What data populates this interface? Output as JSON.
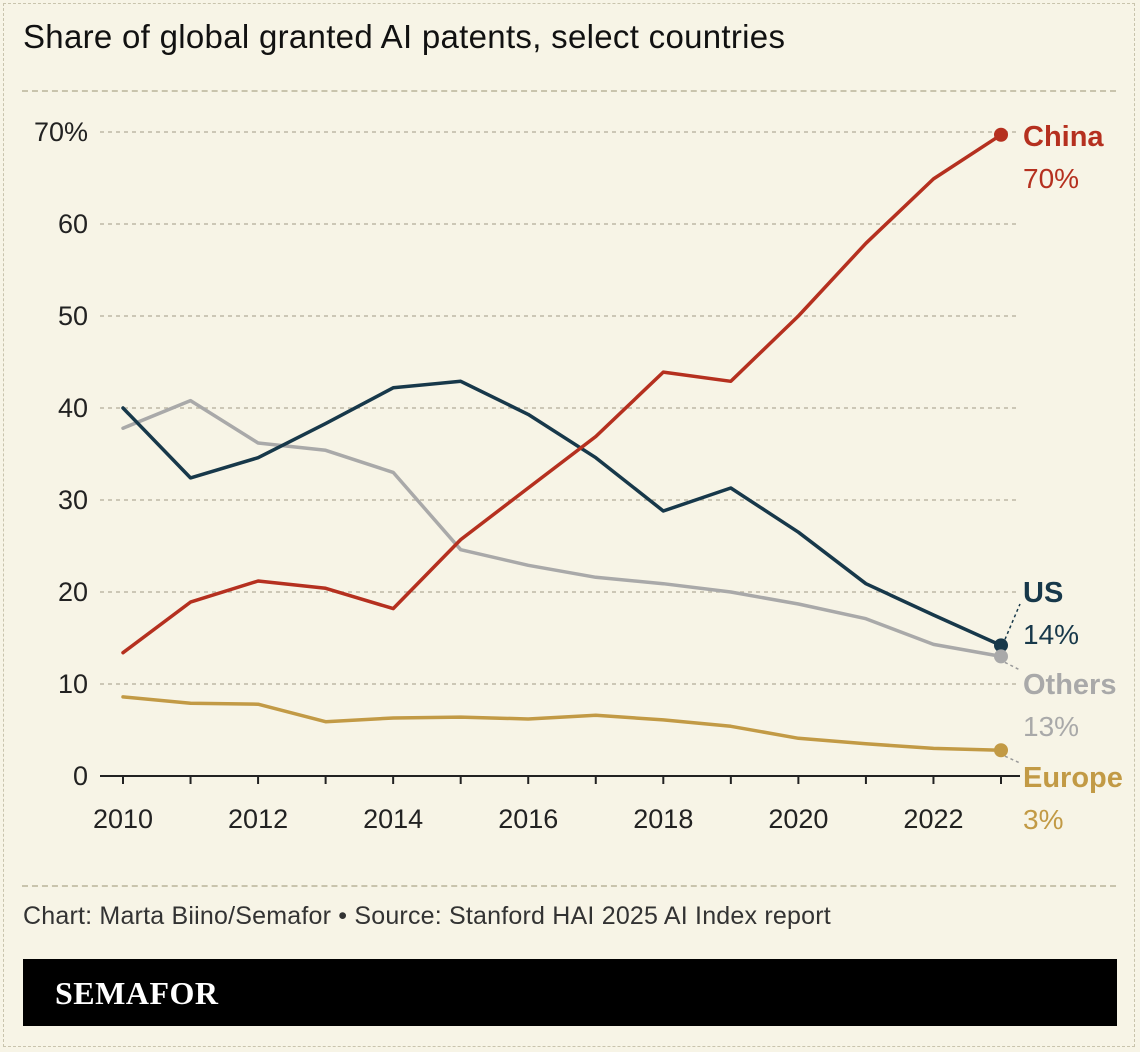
{
  "title": "Share of global granted AI patents, select countries",
  "source": "Chart: Marta Biino/Semafor • Source: Stanford HAI 2025 AI Index report",
  "brand": "SEMAFOR",
  "colors": {
    "background": "#f7f4e6",
    "grid": "#bdb8a6",
    "axis": "#222222"
  },
  "chart_data": {
    "type": "line",
    "title": "Share of global granted AI patents, select countries",
    "x": [
      2010,
      2011,
      2012,
      2013,
      2014,
      2015,
      2016,
      2017,
      2018,
      2019,
      2020,
      2021,
      2022,
      2023
    ],
    "x_tick_labels": [
      "2010",
      "2012",
      "2014",
      "2016",
      "2018",
      "2020",
      "2022"
    ],
    "y_tick_labels": [
      "0",
      "10",
      "20",
      "30",
      "40",
      "50",
      "60",
      "70%"
    ],
    "ylim": [
      0,
      70
    ],
    "xlim": [
      2010,
      2023
    ],
    "grid": true,
    "series": [
      {
        "name": "China",
        "value_label": "70%",
        "color": "#b5301f",
        "values": [
          13.4,
          18.9,
          21.2,
          20.4,
          18.2,
          25.7,
          31.3,
          36.9,
          43.9,
          42.9,
          50.0,
          57.9,
          64.9,
          69.7
        ]
      },
      {
        "name": "US",
        "value_label": "14%",
        "color": "#17384a",
        "values": [
          40.0,
          32.4,
          34.6,
          38.3,
          42.2,
          42.9,
          39.3,
          34.6,
          28.8,
          31.3,
          26.5,
          20.9,
          17.5,
          14.2
        ]
      },
      {
        "name": "Others",
        "value_label": "13%",
        "color": "#a9a9a9",
        "values": [
          37.8,
          40.8,
          36.2,
          35.4,
          33.0,
          24.6,
          22.9,
          21.6,
          20.9,
          20.0,
          18.7,
          17.1,
          14.3,
          13.0
        ]
      },
      {
        "name": "Europe",
        "value_label": "3%",
        "color": "#c29a45",
        "values": [
          8.6,
          7.9,
          7.8,
          5.9,
          6.3,
          6.4,
          6.2,
          6.6,
          6.1,
          5.4,
          4.1,
          3.5,
          3.0,
          2.8
        ]
      }
    ]
  }
}
